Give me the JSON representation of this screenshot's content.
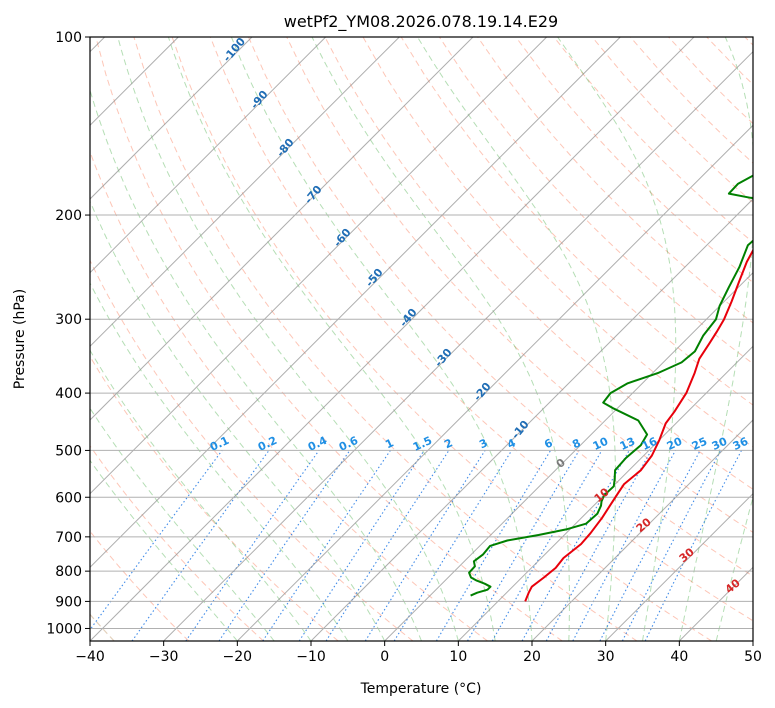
{
  "chart_data": {
    "type": "line",
    "title": "wetPf2_YM08.2026.078.19.14.E29",
    "xlabel": "Temperature (°C)",
    "ylabel": "Pressure (hPa)",
    "xlim": [
      -40,
      50
    ],
    "ylim": [
      1050,
      100
    ],
    "y_scale": "log",
    "x_ticks": [
      "−40",
      "−30",
      "−20",
      "−10",
      "0",
      "10",
      "20",
      "30",
      "40",
      "50"
    ],
    "y_ticks": [
      "100",
      "200",
      "300",
      "400",
      "500",
      "600",
      "700",
      "800",
      "900",
      "1000"
    ],
    "grid": true,
    "series": [
      {
        "color": "#e8000b",
        "points": [
          [
            13.7,
            900
          ],
          [
            13.0,
            870
          ],
          [
            12.6,
            850
          ],
          [
            13.0,
            820
          ],
          [
            13.3,
            790
          ],
          [
            13.0,
            760
          ],
          [
            13.5,
            720
          ],
          [
            13.3,
            690
          ],
          [
            12.8,
            650
          ],
          [
            12.2,
            620
          ],
          [
            11.6,
            590
          ],
          [
            11.2,
            570
          ],
          [
            11.6,
            540
          ],
          [
            11.1,
            510
          ],
          [
            10.0,
            480
          ],
          [
            8.6,
            450
          ],
          [
            8.2,
            430
          ],
          [
            7.3,
            400
          ],
          [
            5.7,
            370
          ],
          [
            4.4,
            350
          ],
          [
            3.7,
            330
          ],
          [
            3.1,
            315
          ],
          [
            2.4,
            300
          ],
          [
            1.0,
            280
          ],
          [
            -0.6,
            260
          ],
          [
            -2.3,
            240
          ],
          [
            -3.7,
            220
          ],
          [
            -3.6,
            205
          ],
          [
            -1.7,
            195
          ],
          [
            2.4,
            187
          ],
          [
            7.5,
            182
          ],
          [
            9.3,
            176
          ],
          [
            10.2,
            170
          ],
          [
            11.3,
            162
          ],
          [
            11.4,
            150
          ],
          [
            12.5,
            140
          ],
          [
            14.5,
            130
          ],
          [
            16.6,
            120
          ],
          [
            18.2,
            112
          ],
          [
            19.2,
            105
          ],
          [
            20.0,
            100
          ]
        ]
      },
      {
        "color": "#008000",
        "points": [
          [
            5.5,
            880
          ],
          [
            6.0,
            870
          ],
          [
            7.0,
            860
          ],
          [
            7.0,
            850
          ],
          [
            5.8,
            840
          ],
          [
            4.3,
            830
          ],
          [
            3.1,
            820
          ],
          [
            2.2,
            805
          ],
          [
            2.1,
            785
          ],
          [
            1.3,
            770
          ],
          [
            1.6,
            750
          ],
          [
            1.4,
            725
          ],
          [
            3.0,
            710
          ],
          [
            6.5,
            695
          ],
          [
            9.5,
            680
          ],
          [
            11.4,
            665
          ],
          [
            11.6,
            640
          ],
          [
            11.0,
            620
          ],
          [
            10.5,
            610
          ],
          [
            10.0,
            595
          ],
          [
            10.1,
            575
          ],
          [
            9.3,
            560
          ],
          [
            8.1,
            540
          ],
          [
            7.9,
            515
          ],
          [
            8.2,
            490
          ],
          [
            7.6,
            470
          ],
          [
            4.5,
            445
          ],
          [
            -0.4,
            425
          ],
          [
            -2.7,
            415
          ],
          [
            -3.0,
            400
          ],
          [
            -2.0,
            385
          ],
          [
            0.7,
            370
          ],
          [
            2.5,
            355
          ],
          [
            2.8,
            340
          ],
          [
            1.8,
            320
          ],
          [
            1.3,
            300
          ],
          [
            0.0,
            285
          ],
          [
            -1.3,
            265
          ],
          [
            -2.6,
            245
          ],
          [
            -4.4,
            225
          ],
          [
            -4.1,
            210
          ],
          [
            -3.2,
            200
          ],
          [
            -4.7,
            190
          ],
          [
            -10.5,
            187
          ],
          [
            -14.0,
            184
          ],
          [
            -14.1,
            177
          ],
          [
            -12.9,
            170
          ],
          [
            -12.1,
            163
          ],
          [
            -11.8,
            155
          ],
          [
            -11.3,
            146
          ],
          [
            -10.2,
            138
          ],
          [
            -8.4,
            128
          ],
          [
            -6.3,
            118
          ],
          [
            -3.7,
            110
          ],
          [
            -1.6,
            103
          ],
          [
            0.0,
            100
          ]
        ]
      }
    ],
    "dry_adiabat_labels": [
      "-100",
      "-90",
      "-80",
      "-70",
      "-60",
      "-50",
      "-40",
      "-30",
      "-20",
      "-10"
    ],
    "mixing_ratio_labels": [
      "0.1",
      "0.2",
      "0.4",
      "0.6",
      "1",
      "1.5",
      "2",
      "3",
      "4",
      "6",
      "8",
      "10",
      "13",
      "16",
      "20",
      "25",
      "30",
      "36"
    ],
    "moist_adiabat_labels": [
      "0",
      "10",
      "20",
      "30",
      "40"
    ]
  }
}
